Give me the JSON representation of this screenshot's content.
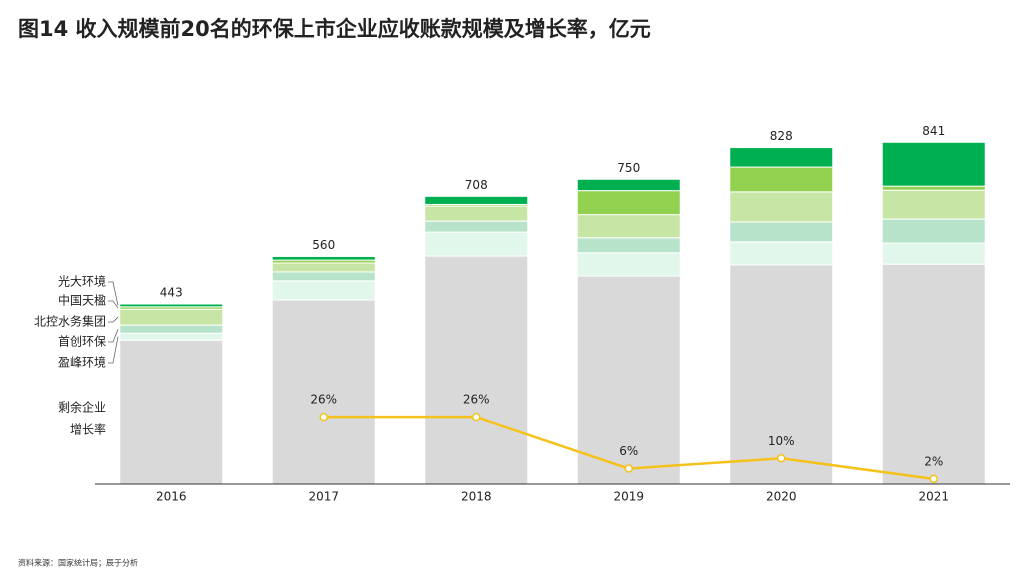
{
  "chart_data": {
    "type": "bar",
    "stacked": true,
    "title": "图14 收入规模前20名的环保上市企业应收账款规模及增长率，亿元",
    "source": "资料来源：国家统计局；辰于分析",
    "categories": [
      "2016",
      "2017",
      "2018",
      "2019",
      "2020",
      "2021"
    ],
    "totals": [
      443,
      560,
      708,
      750,
      828,
      841
    ],
    "ylim": [
      0,
      950
    ],
    "y2lim": [
      0,
      150
    ],
    "series": [
      {
        "name": "剩余企业",
        "color": "#d9d9d9",
        "values": [
          354,
          453,
          561,
          512,
          539,
          541
        ]
      },
      {
        "name": "盈峰环境",
        "color": "#e2f7ec",
        "values": [
          17,
          47,
          59,
          57,
          57,
          52
        ]
      },
      {
        "name": "首创环保",
        "color": "#b8e3cb",
        "values": [
          20,
          22,
          27,
          37,
          49,
          59
        ]
      },
      {
        "name": "北控水务集团",
        "color": "#c7e6a5",
        "values": [
          39,
          22,
          37,
          57,
          74,
          71
        ]
      },
      {
        "name": "中国天楹",
        "color": "#92d050",
        "values": [
          6,
          7,
          4,
          59,
          61,
          10
        ]
      },
      {
        "name": "光大环境",
        "color": "#00b050",
        "values": [
          7,
          9,
          20,
          28,
          48,
          108
        ]
      },
      {
        "name": "增长率",
        "type": "line",
        "axis": "y2",
        "color": "#f5c21b",
        "values": [
          null,
          26,
          26,
          6,
          10,
          2
        ],
        "value_labels": [
          null,
          "26%",
          "26%",
          "6%",
          "10%",
          "2%"
        ]
      }
    ]
  }
}
